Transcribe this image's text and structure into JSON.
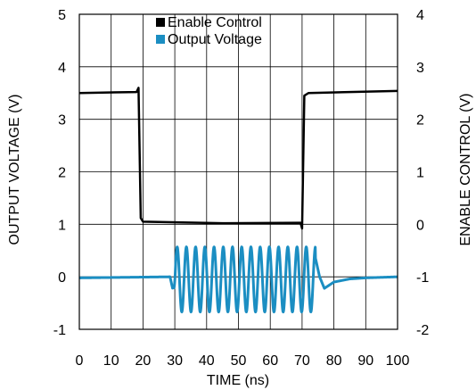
{
  "chart_data": {
    "type": "line",
    "xlabel": "TIME (ns)",
    "ylabel_left": "OUTPUT VOLTAGE (V)",
    "ylabel_right": "ENABLE CONTROL (V)",
    "xlim": [
      0,
      100
    ],
    "ylim_left": [
      -1,
      5
    ],
    "ylim_right": [
      -2,
      4
    ],
    "x_ticks": [
      "0",
      "10",
      "20",
      "30",
      "40",
      "50",
      "60",
      "70",
      "80",
      "90",
      "100"
    ],
    "y_left_ticks": [
      "-1",
      "0",
      "1",
      "2",
      "3",
      "4",
      "5"
    ],
    "y_right_ticks": [
      "-2",
      "-1",
      "0",
      "1",
      "2",
      "3",
      "4"
    ],
    "grid": true,
    "legend_position": "top-center",
    "series": [
      {
        "name": "Enable Control",
        "color": "#000000",
        "axis": "right",
        "points": [
          [
            0,
            2.5
          ],
          [
            18,
            2.52
          ],
          [
            18.6,
            2.6
          ],
          [
            19.3,
            0.12
          ],
          [
            20,
            0.05
          ],
          [
            45,
            0.02
          ],
          [
            69.5,
            0.03
          ],
          [
            70,
            -0.08
          ],
          [
            70.7,
            2.45
          ],
          [
            72,
            2.5
          ],
          [
            100,
            2.54
          ]
        ]
      },
      {
        "name": "Output Voltage",
        "color": "#1b8ec2",
        "axis": "left",
        "baseline": [
          [
            0,
            -0.02
          ],
          [
            28.5,
            0.0
          ],
          [
            29.3,
            -0.22
          ],
          [
            73.5,
            0.55
          ],
          [
            75.5,
            0.0
          ],
          [
            77,
            -0.22
          ],
          [
            80,
            -0.1
          ],
          [
            85,
            -0.04
          ],
          [
            90,
            -0.02
          ],
          [
            100,
            0.0
          ]
        ],
        "burst": {
          "x_start": 29.3,
          "x_end": 74.2,
          "cycles": 15.5,
          "center": -0.05,
          "amplitude": 0.62
        }
      }
    ]
  }
}
